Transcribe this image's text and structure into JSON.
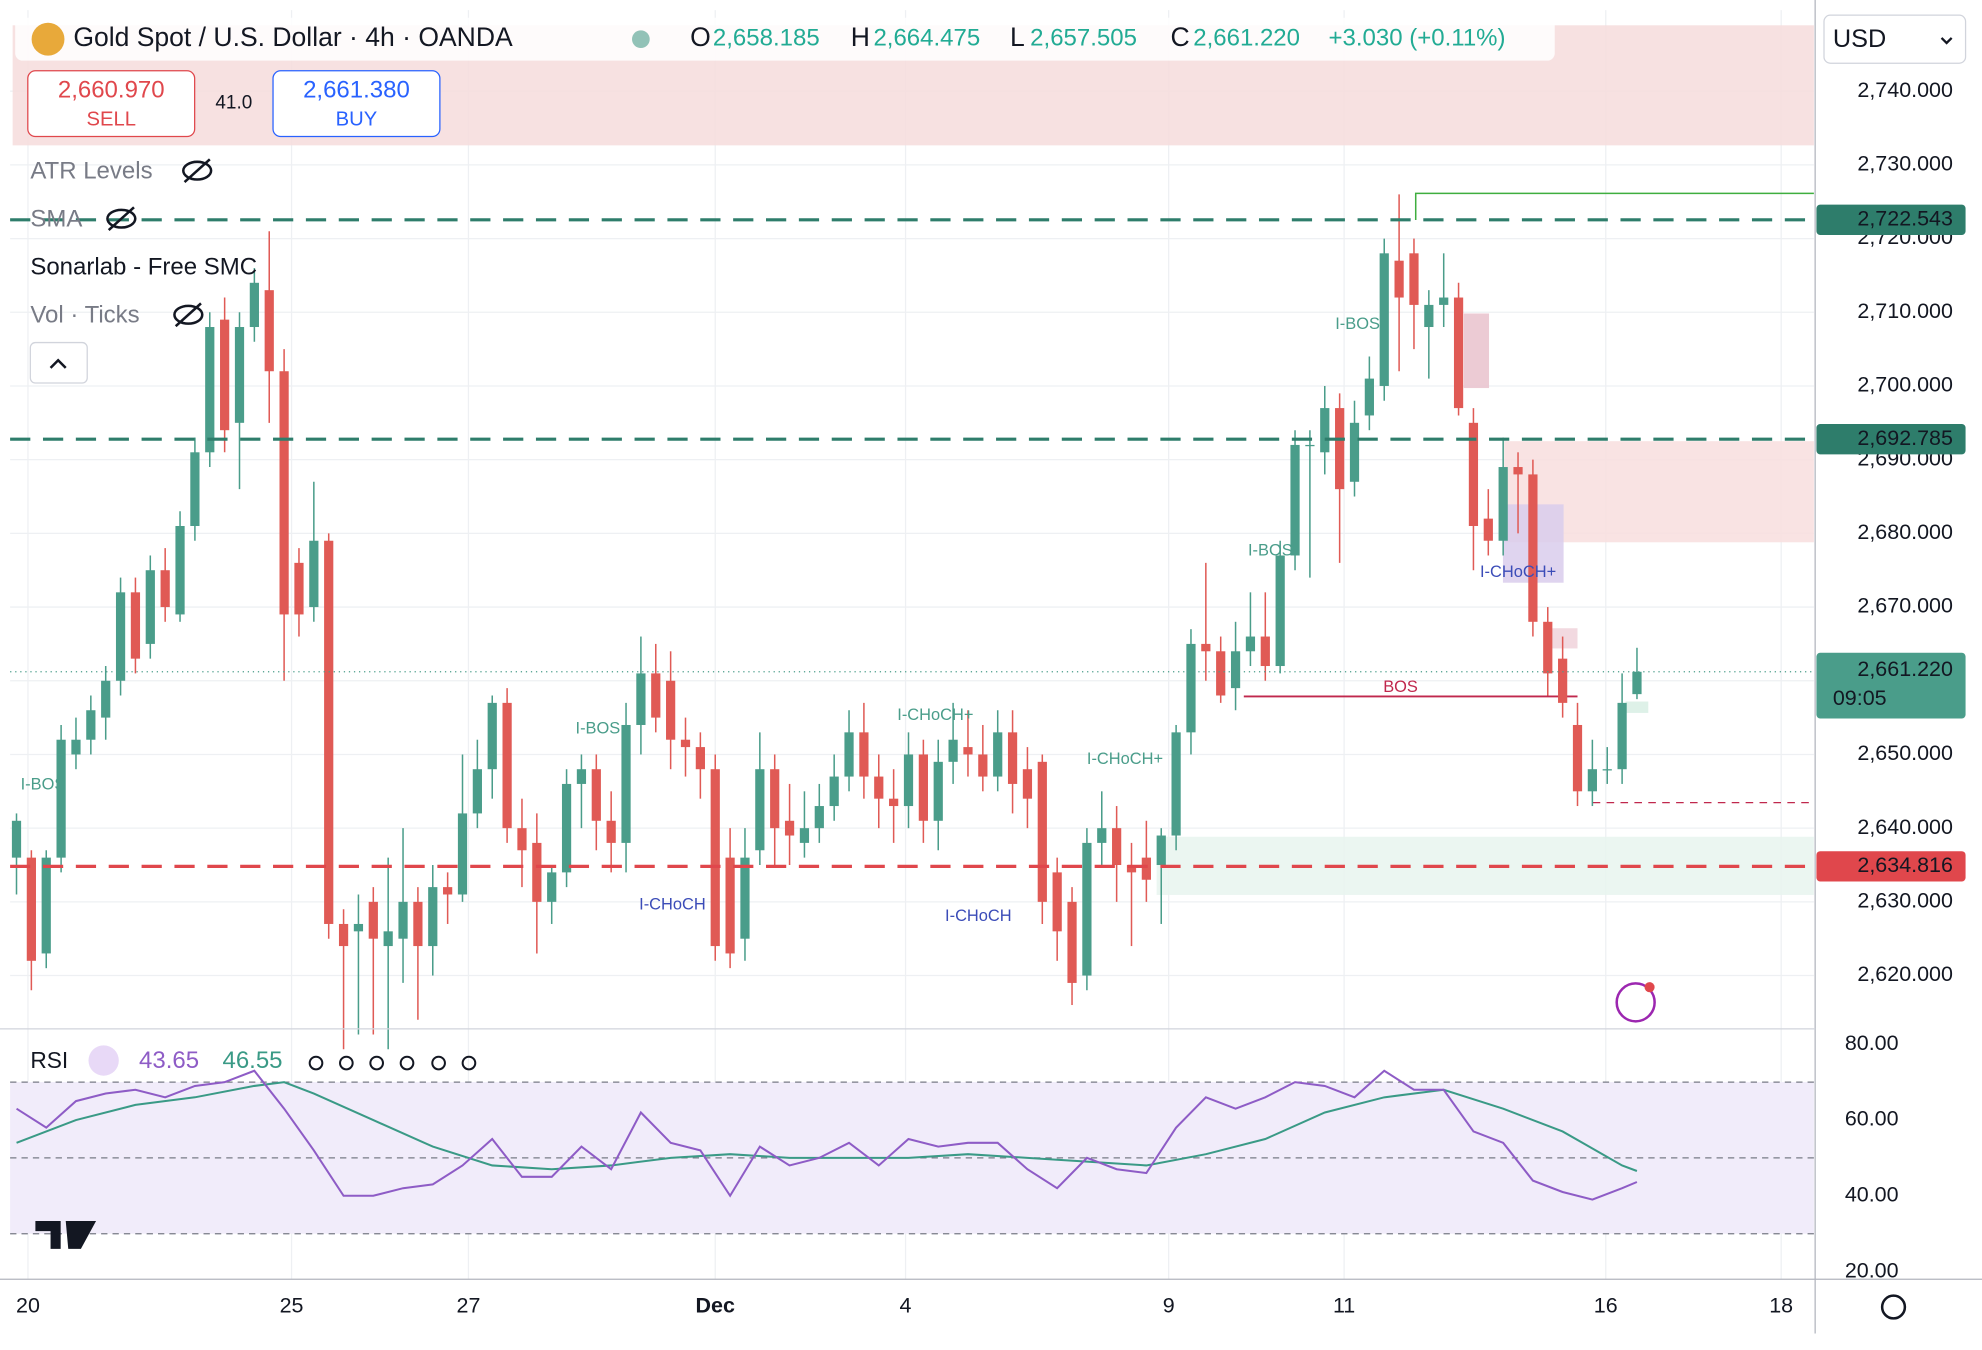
{
  "header": {
    "title": "Gold Spot / U.S. Dollar · 4h · OANDA",
    "o_label": "O",
    "open": "2,658.185",
    "h_label": "H",
    "high": "2,664.475",
    "l_label": "L",
    "low": "2,657.505",
    "c_label": "C",
    "close": "2,661.220",
    "change": "+3.030 (+0.11%)",
    "sell_price": "2,660.970",
    "sell": "SELL",
    "spread": "41.0",
    "buy_price": "2,661.380",
    "buy": "BUY"
  },
  "indicators": [
    "ATR Levels",
    "SMA",
    "Sonarlab - Free SMC",
    "Vol · Ticks"
  ],
  "currency": "USD",
  "chart_data": [
    {
      "type": "candlestick",
      "up_color": "#4a9d8a",
      "down_color": "#e05a55",
      "ylim": [
        2613.1,
        2751.0
      ],
      "yticks": [
        {
          "value": 2620,
          "label": "2,620.000"
        },
        {
          "value": 2630,
          "label": "2,630.000"
        },
        {
          "value": 2640,
          "label": "2,640.000"
        },
        {
          "value": 2650,
          "label": "2,650.000"
        },
        {
          "value": 2660,
          "label": "2,660.000"
        },
        {
          "value": 2670,
          "label": "2,670.000"
        },
        {
          "value": 2680,
          "label": "2,680.000"
        },
        {
          "value": 2690,
          "label": "2,690.000"
        },
        {
          "value": 2700,
          "label": "2,700.000"
        },
        {
          "value": 2710,
          "label": "2,710.000"
        },
        {
          "value": 2720,
          "label": "2,720.000"
        },
        {
          "value": 2730,
          "label": "2,730.000"
        },
        {
          "value": 2740,
          "label": "2,740.000"
        }
      ],
      "xlim": [
        -0.43,
        120.9
      ],
      "xticks": [
        {
          "value": 0.77,
          "label": "20"
        },
        {
          "value": 18.5,
          "label": "25"
        },
        {
          "value": 30.4,
          "label": "27"
        },
        {
          "value": 47.0,
          "label": "Dec"
        },
        {
          "value": 59.8,
          "label": "4"
        },
        {
          "value": 77.5,
          "label": "9"
        },
        {
          "value": 89.3,
          "label": "11"
        },
        {
          "value": 106.9,
          "label": "16"
        },
        {
          "value": 118.7,
          "label": "18"
        }
      ],
      "grid": true,
      "ohlc": [
        [
          2636,
          2642,
          2631,
          2641
        ],
        [
          2636,
          2637,
          2618,
          2622
        ],
        [
          2623,
          2637,
          2621,
          2636
        ],
        [
          2636,
          2654,
          2634,
          2652
        ],
        [
          2650,
          2655,
          2648,
          2652
        ],
        [
          2652,
          2658,
          2650,
          2656
        ],
        [
          2655,
          2662,
          2652,
          2660
        ],
        [
          2660,
          2674,
          2658,
          2672
        ],
        [
          2672,
          2674,
          2661,
          2663
        ],
        [
          2665,
          2677,
          2663,
          2675
        ],
        [
          2675,
          2678,
          2668,
          2670
        ],
        [
          2669,
          2683,
          2668,
          2681
        ],
        [
          2681,
          2693,
          2679,
          2691
        ],
        [
          2691,
          2710,
          2689,
          2708
        ],
        [
          2709,
          2712,
          2691,
          2694
        ],
        [
          2695,
          2710,
          2686,
          2708
        ],
        [
          2708,
          2716,
          2706,
          2714
        ],
        [
          2713,
          2721,
          2695,
          2702
        ],
        [
          2702,
          2705,
          2660,
          2669
        ],
        [
          2676,
          2678,
          2666,
          2669
        ],
        [
          2670,
          2687,
          2668,
          2679
        ],
        [
          2679,
          2680,
          2625,
          2627
        ],
        [
          2627,
          2629,
          2610,
          2624
        ],
        [
          2626,
          2631,
          2612,
          2627
        ],
        [
          2630,
          2632,
          2612,
          2625
        ],
        [
          2624,
          2636,
          2610,
          2626
        ],
        [
          2625,
          2640,
          2619,
          2630
        ],
        [
          2630,
          2632,
          2614,
          2624
        ],
        [
          2624,
          2635,
          2620,
          2632
        ],
        [
          2632,
          2634,
          2627,
          2631
        ],
        [
          2631,
          2650,
          2630,
          2642
        ],
        [
          2642,
          2652,
          2640,
          2648
        ],
        [
          2648,
          2658,
          2644,
          2657
        ],
        [
          2657,
          2659,
          2638,
          2640
        ],
        [
          2640,
          2644,
          2632,
          2637
        ],
        [
          2638,
          2642,
          2623,
          2630
        ],
        [
          2630,
          2635,
          2627,
          2634
        ],
        [
          2634,
          2648,
          2632,
          2646
        ],
        [
          2646,
          2650,
          2640,
          2648
        ],
        [
          2648,
          2650,
          2637,
          2641
        ],
        [
          2641,
          2645,
          2634,
          2638
        ],
        [
          2638,
          2657,
          2634,
          2654
        ],
        [
          2654,
          2666,
          2650,
          2661
        ],
        [
          2661,
          2665,
          2653,
          2655
        ],
        [
          2660,
          2664,
          2648,
          2652
        ],
        [
          2652,
          2655,
          2647,
          2651
        ],
        [
          2651,
          2653,
          2644,
          2648
        ],
        [
          2648,
          2650,
          2622,
          2624
        ],
        [
          2636,
          2640,
          2621,
          2623
        ],
        [
          2625,
          2640,
          2622,
          2636
        ],
        [
          2637,
          2653,
          2635,
          2648
        ],
        [
          2648,
          2650,
          2635,
          2640
        ],
        [
          2641,
          2646,
          2635,
          2639
        ],
        [
          2638,
          2645,
          2636,
          2640
        ],
        [
          2640,
          2646,
          2638,
          2643
        ],
        [
          2643,
          2650,
          2641,
          2647
        ],
        [
          2647,
          2656,
          2645,
          2653
        ],
        [
          2653,
          2657,
          2644,
          2647
        ],
        [
          2647,
          2650,
          2640,
          2644
        ],
        [
          2644,
          2648,
          2638,
          2643
        ],
        [
          2643,
          2653,
          2640,
          2650
        ],
        [
          2650,
          2652,
          2638,
          2641
        ],
        [
          2641,
          2652,
          2637,
          2649
        ],
        [
          2649,
          2657,
          2646,
          2652
        ],
        [
          2651,
          2656,
          2647,
          2650
        ],
        [
          2650,
          2654,
          2645,
          2647
        ],
        [
          2647,
          2656,
          2645,
          2653
        ],
        [
          2653,
          2656,
          2642,
          2646
        ],
        [
          2648,
          2651,
          2640,
          2644
        ],
        [
          2649,
          2650,
          2627,
          2630
        ],
        [
          2634,
          2636,
          2622,
          2626
        ],
        [
          2630,
          2632,
          2616,
          2619
        ],
        [
          2620,
          2640,
          2618,
          2638
        ],
        [
          2638,
          2645,
          2635,
          2640
        ],
        [
          2640,
          2643,
          2630,
          2635
        ],
        [
          2635,
          2638,
          2624,
          2634
        ],
        [
          2636,
          2641,
          2630,
          2633
        ],
        [
          2635,
          2640,
          2627,
          2639
        ],
        [
          2639,
          2654,
          2637,
          2653
        ],
        [
          2653,
          2667,
          2650,
          2665
        ],
        [
          2665,
          2676,
          2660,
          2664
        ],
        [
          2664,
          2666,
          2657,
          2658
        ],
        [
          2659,
          2668,
          2656,
          2664
        ],
        [
          2664,
          2672,
          2662,
          2666
        ],
        [
          2666,
          2672,
          2660,
          2662
        ],
        [
          2662,
          2679,
          2661,
          2677
        ],
        [
          2677,
          2694,
          2675,
          2692
        ],
        [
          2692,
          2694,
          2674,
          2692
        ],
        [
          2691,
          2700,
          2688,
          2697
        ],
        [
          2697,
          2699,
          2676,
          2686
        ],
        [
          2687,
          2698,
          2685,
          2695
        ],
        [
          2696,
          2704,
          2694,
          2701
        ],
        [
          2700,
          2720,
          2698,
          2718
        ],
        [
          2717,
          2726,
          2702,
          2712
        ],
        [
          2718,
          2720,
          2705,
          2711
        ],
        [
          2708,
          2713,
          2701,
          2711
        ],
        [
          2711,
          2718,
          2708,
          2712
        ],
        [
          2712,
          2714,
          2696,
          2697
        ],
        [
          2695,
          2697,
          2675,
          2681
        ],
        [
          2682,
          2686,
          2677,
          2679
        ],
        [
          2679,
          2693,
          2677,
          2689
        ],
        [
          2689,
          2691,
          2680,
          2688
        ],
        [
          2688,
          2690,
          2666,
          2668
        ],
        [
          2668,
          2670,
          2658,
          2661
        ],
        [
          2663,
          2666,
          2655,
          2657
        ],
        [
          2654,
          2657,
          2643,
          2645
        ],
        [
          2645,
          2652,
          2643,
          2648
        ],
        [
          2648,
          2651,
          2646,
          2648
        ],
        [
          2648,
          2661,
          2646,
          2657
        ],
        [
          2658.185,
          2664.475,
          2657.505,
          2661.22
        ]
      ],
      "levels": [
        {
          "value": 2722.543,
          "label": "2,722.543",
          "color": "#2e7d6b"
        },
        {
          "value": 2692.785,
          "label": "2,692.785",
          "color": "#2e7d6b"
        },
        {
          "value": 2634.816,
          "label": "2,634.816",
          "color": "#e0474c"
        }
      ],
      "last_price": {
        "value": 2661.22,
        "label": "2,661.220",
        "countdown": "09:05",
        "color": "#4a9d8a"
      },
      "annotations": [
        "I-BOS",
        "I-BOS",
        "I-CHoCH",
        "I-CHoCH+",
        "I-CHoCH",
        "I-CHoCH+",
        "I-BOS",
        "I-BOS",
        "I-CHoCH+",
        "BOS"
      ]
    },
    {
      "type": "line",
      "title": "RSI",
      "color": "#8e5cc6",
      "ma_color": "#3a9a86",
      "ylim": [
        18,
        83.7
      ],
      "yticks": [
        {
          "value": 20,
          "label": "20.00"
        },
        {
          "value": 40,
          "label": "40.00"
        },
        {
          "value": 60,
          "label": "60.00"
        },
        {
          "value": 80,
          "label": "80.00"
        }
      ],
      "bands": [
        30,
        50,
        70
      ],
      "x": [
        0,
        2,
        4,
        6,
        8,
        10,
        12,
        14,
        16,
        18,
        20,
        22,
        24,
        26,
        28,
        30,
        32,
        34,
        36,
        38,
        40,
        42,
        44,
        46,
        48,
        50,
        52,
        54,
        56,
        58,
        60,
        62,
        64,
        66,
        68,
        70,
        72,
        74,
        76,
        78,
        80,
        82,
        84,
        86,
        88,
        90,
        92,
        94,
        96,
        98,
        100,
        102,
        104,
        106,
        108,
        109
      ],
      "values": [
        63,
        58,
        65,
        67,
        68,
        66,
        69,
        70,
        73,
        63,
        52,
        40,
        40,
        42,
        43,
        48,
        55,
        45,
        45,
        53,
        47,
        62,
        54,
        52,
        40,
        53,
        48,
        50,
        54,
        48,
        55,
        53,
        54,
        54,
        47,
        42,
        50,
        47,
        46,
        58,
        66,
        63,
        66,
        70,
        69,
        66,
        73,
        68,
        68,
        57,
        54,
        44,
        41,
        39,
        42,
        43.65
      ],
      "ma_x": [
        0,
        4,
        8,
        12,
        16,
        18,
        20,
        24,
        28,
        32,
        36,
        40,
        44,
        48,
        52,
        56,
        60,
        64,
        68,
        72,
        76,
        80,
        84,
        88,
        92,
        96,
        100,
        104,
        108,
        109
      ],
      "ma_values": [
        54,
        60,
        64,
        66,
        69,
        70,
        67,
        60,
        53,
        48,
        47,
        48,
        50,
        51,
        50,
        50,
        50,
        51,
        50,
        49,
        48,
        51,
        55,
        62,
        66,
        68,
        63,
        57,
        48,
        46.55
      ]
    }
  ]
}
